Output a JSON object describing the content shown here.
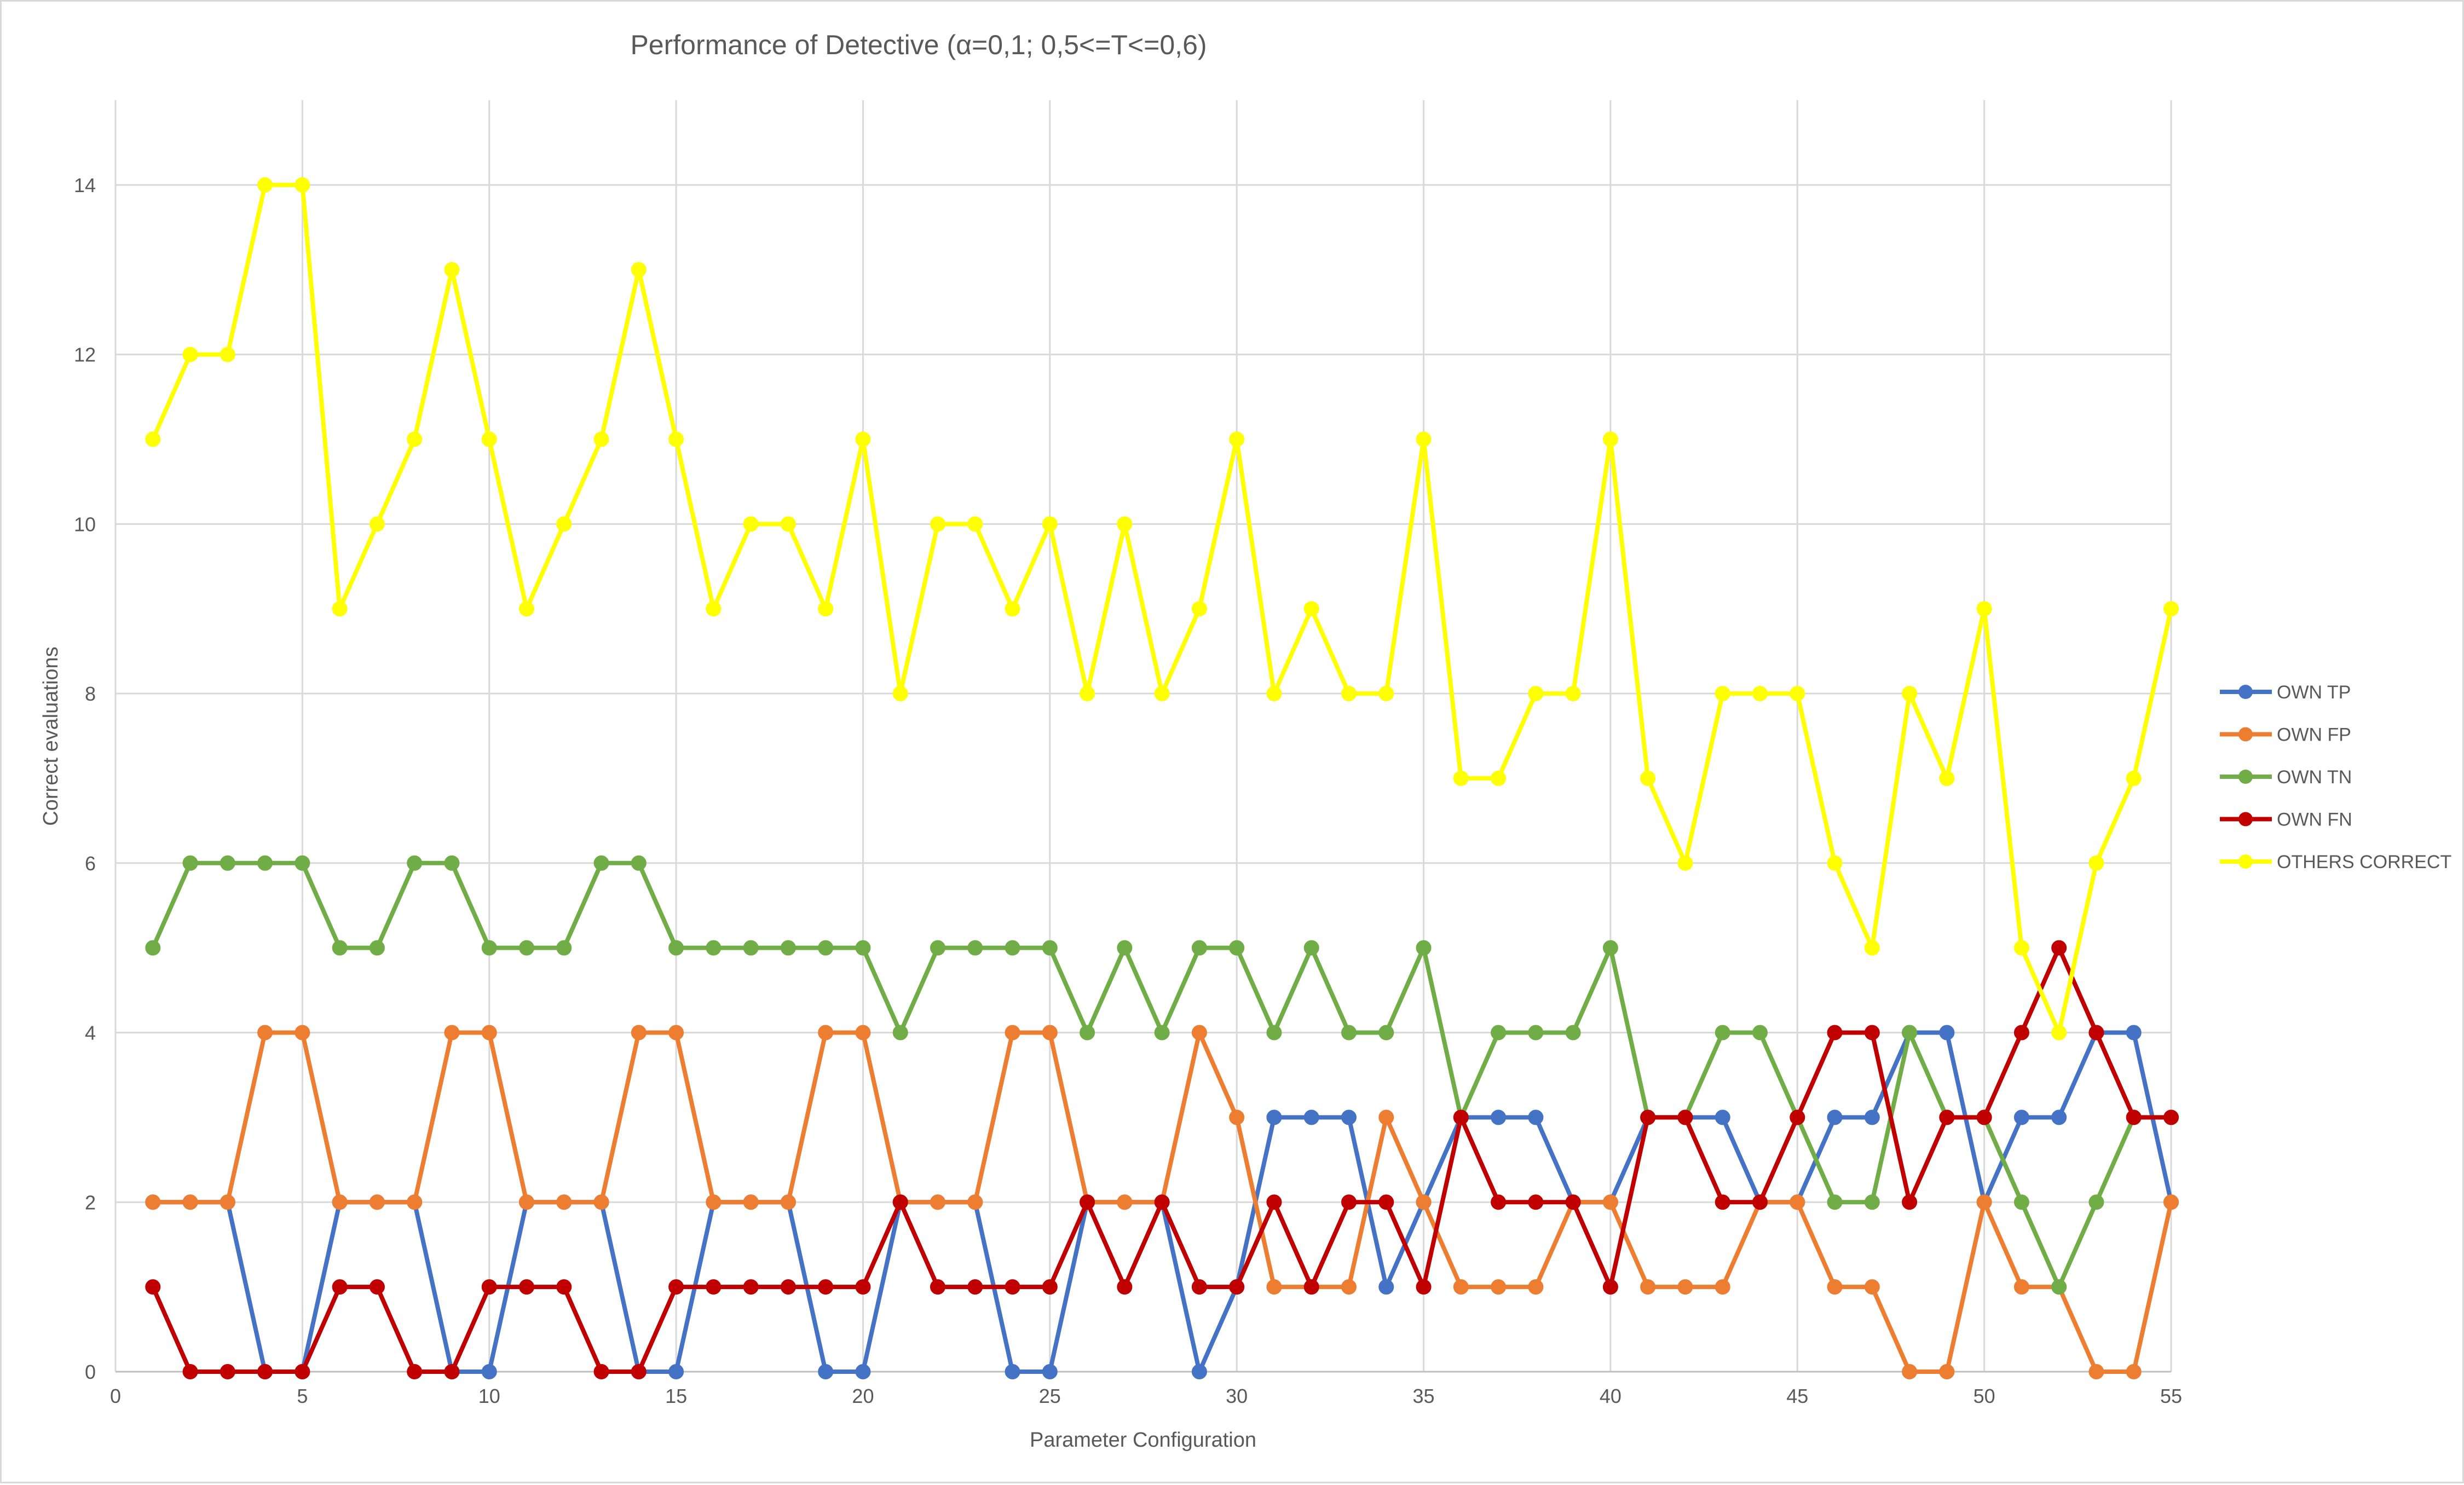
{
  "chart_data": {
    "type": "line",
    "title": "Performance of Detective (α=0,1; 0,5<=T<=0,6)",
    "xlabel": "Parameter Configuration",
    "ylabel": "Correct evaluations",
    "xlim": [
      0,
      55
    ],
    "ylim": [
      0,
      15
    ],
    "x_ticks": [
      0,
      5,
      10,
      15,
      20,
      25,
      30,
      35,
      40,
      45,
      50,
      55
    ],
    "y_ticks": [
      0,
      2,
      4,
      6,
      8,
      10,
      12,
      14
    ],
    "grid": true,
    "legend_position": "right",
    "x": [
      1,
      2,
      3,
      4,
      5,
      6,
      7,
      8,
      9,
      10,
      11,
      12,
      13,
      14,
      15,
      16,
      17,
      18,
      19,
      20,
      21,
      22,
      23,
      24,
      25,
      26,
      27,
      28,
      29,
      30,
      31,
      32,
      33,
      34,
      35,
      36,
      37,
      38,
      39,
      40,
      41,
      42,
      43,
      44,
      45,
      46,
      47,
      48,
      49,
      50,
      51,
      52,
      53,
      54,
      55
    ],
    "series": [
      {
        "name": "OWN TP",
        "color": "#4472c4",
        "values": [
          2,
          2,
          2,
          0,
          0,
          2,
          2,
          2,
          0,
          0,
          2,
          2,
          2,
          0,
          0,
          2,
          2,
          2,
          0,
          0,
          2,
          2,
          2,
          0,
          0,
          2,
          2,
          2,
          0,
          1,
          3,
          3,
          3,
          1,
          2,
          3,
          3,
          3,
          2,
          2,
          3,
          3,
          3,
          2,
          2,
          3,
          3,
          4,
          4,
          2,
          3,
          3,
          4,
          4,
          2
        ]
      },
      {
        "name": "OWN FP",
        "color": "#ed7d31",
        "values": [
          2,
          2,
          2,
          4,
          4,
          2,
          2,
          2,
          4,
          4,
          2,
          2,
          2,
          4,
          4,
          2,
          2,
          2,
          4,
          4,
          2,
          2,
          2,
          4,
          4,
          2,
          2,
          2,
          4,
          3,
          1,
          1,
          1,
          3,
          2,
          1,
          1,
          1,
          2,
          2,
          1,
          1,
          1,
          2,
          2,
          1,
          1,
          0,
          0,
          2,
          1,
          1,
          0,
          0,
          2
        ]
      },
      {
        "name": "OWN TN",
        "color": "#70ad47",
        "values": [
          5,
          6,
          6,
          6,
          6,
          5,
          5,
          6,
          6,
          5,
          5,
          5,
          6,
          6,
          5,
          5,
          5,
          5,
          5,
          5,
          4,
          5,
          5,
          5,
          5,
          4,
          5,
          4,
          5,
          5,
          4,
          5,
          4,
          4,
          5,
          3,
          4,
          4,
          4,
          5,
          3,
          3,
          4,
          4,
          3,
          2,
          2,
          4,
          3,
          3,
          2,
          1,
          2,
          3,
          3
        ]
      },
      {
        "name": "OWN FN",
        "color": "#c00000",
        "values": [
          1,
          0,
          0,
          0,
          0,
          1,
          1,
          0,
          0,
          1,
          1,
          1,
          0,
          0,
          1,
          1,
          1,
          1,
          1,
          1,
          2,
          1,
          1,
          1,
          1,
          2,
          1,
          2,
          1,
          1,
          2,
          1,
          2,
          2,
          1,
          3,
          2,
          2,
          2,
          1,
          3,
          3,
          2,
          2,
          3,
          4,
          4,
          2,
          3,
          3,
          4,
          5,
          4,
          3,
          3
        ]
      },
      {
        "name": "OTHERS CORRECT",
        "color": "#ffff00",
        "values": [
          11,
          12,
          12,
          14,
          14,
          9,
          10,
          11,
          13,
          11,
          9,
          10,
          11,
          13,
          11,
          9,
          10,
          10,
          9,
          11,
          8,
          10,
          10,
          9,
          10,
          8,
          10,
          8,
          9,
          11,
          8,
          9,
          8,
          8,
          11,
          7,
          7,
          8,
          8,
          11,
          7,
          6,
          8,
          8,
          8,
          6,
          5,
          8,
          7,
          9,
          5,
          4,
          6,
          7,
          9
        ]
      }
    ]
  }
}
